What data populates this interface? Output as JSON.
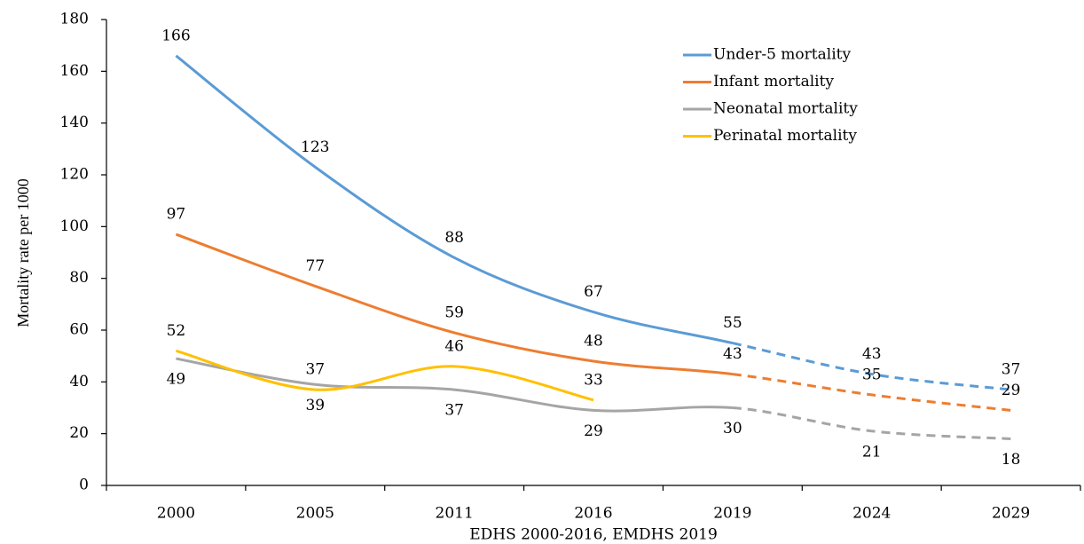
{
  "chart_data": {
    "type": "line",
    "categories": [
      "2000",
      "2005",
      "2011",
      "2016",
      "2019",
      "2024",
      "2029"
    ],
    "series": [
      {
        "name": "Under-5 mortality",
        "color": "#5b9bd5",
        "values": [
          166,
          123,
          88,
          67,
          55,
          43,
          37
        ]
      },
      {
        "name": "Infant mortality",
        "color": "#ed7d31",
        "values": [
          97,
          77,
          59,
          48,
          43,
          35,
          29
        ]
      },
      {
        "name": "Neonatal mortality",
        "color": "#a5a5a5",
        "values": [
          49,
          39,
          37,
          29,
          30,
          21,
          18
        ]
      },
      {
        "name": "Perinatal mortality",
        "color": "#ffc000",
        "values": [
          52,
          37,
          46,
          33,
          null,
          null,
          null
        ]
      }
    ],
    "ylim": [
      0,
      180
    ],
    "yticks": [
      0,
      20,
      40,
      60,
      80,
      100,
      120,
      140,
      160,
      180
    ],
    "ylabel": "Mortality rate per 1000",
    "xlabel": "EDHS 2000-2016, EMDHS 2019",
    "projected_from_index": 4,
    "smooth": true,
    "grid": false,
    "legend": "upper right"
  }
}
